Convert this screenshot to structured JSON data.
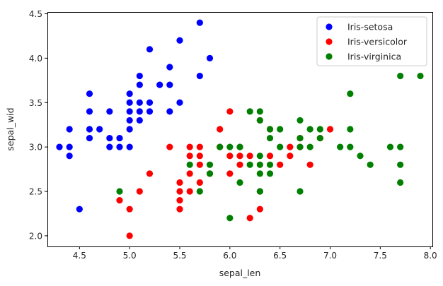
{
  "chart_data": {
    "type": "scatter",
    "xlabel": "sepal_len",
    "ylabel": "sepal_wid",
    "xlim": [
      4.18,
      8.02
    ],
    "ylim": [
      1.88,
      4.52
    ],
    "x_ticks": [
      4.5,
      5.0,
      5.5,
      6.0,
      6.5,
      7.0,
      7.5,
      8.0
    ],
    "y_ticks": [
      2.0,
      2.5,
      3.0,
      3.5,
      4.0,
      4.5
    ],
    "x_tick_labels": [
      "4.5",
      "5.0",
      "5.5",
      "6.0",
      "6.5",
      "7.0",
      "7.5",
      "8.0"
    ],
    "y_tick_labels": [
      "2.0",
      "2.5",
      "3.0",
      "3.5",
      "4.0",
      "4.5"
    ],
    "grid": false,
    "legend_position": "top-right",
    "series": [
      {
        "name": "Iris-setosa",
        "color": "#0000ff",
        "points": [
          [
            4.3,
            3.0
          ],
          [
            4.4,
            3.2
          ],
          [
            4.4,
            3.0
          ],
          [
            4.4,
            2.9
          ],
          [
            4.5,
            2.3
          ],
          [
            4.6,
            3.6
          ],
          [
            4.6,
            3.4
          ],
          [
            4.6,
            3.2
          ],
          [
            4.6,
            3.1
          ],
          [
            4.7,
            3.2
          ],
          [
            4.8,
            3.4
          ],
          [
            4.8,
            3.1
          ],
          [
            4.8,
            3.0
          ],
          [
            4.9,
            3.1
          ],
          [
            4.9,
            3.0
          ],
          [
            5.0,
            3.6
          ],
          [
            5.0,
            3.5
          ],
          [
            5.0,
            3.4
          ],
          [
            5.0,
            3.3
          ],
          [
            5.0,
            3.2
          ],
          [
            5.0,
            3.0
          ],
          [
            5.1,
            3.8
          ],
          [
            5.1,
            3.7
          ],
          [
            5.1,
            3.5
          ],
          [
            5.1,
            3.4
          ],
          [
            5.1,
            3.3
          ],
          [
            5.2,
            4.1
          ],
          [
            5.2,
            3.5
          ],
          [
            5.2,
            3.4
          ],
          [
            5.3,
            3.7
          ],
          [
            5.4,
            3.9
          ],
          [
            5.4,
            3.7
          ],
          [
            5.4,
            3.4
          ],
          [
            5.5,
            4.2
          ],
          [
            5.5,
            3.5
          ],
          [
            5.7,
            4.4
          ],
          [
            5.7,
            3.8
          ],
          [
            5.8,
            4.0
          ]
        ]
      },
      {
        "name": "Iris-versicolor",
        "color": "#ff0000",
        "points": [
          [
            4.9,
            2.4
          ],
          [
            5.0,
            2.3
          ],
          [
            5.0,
            2.0
          ],
          [
            5.1,
            2.5
          ],
          [
            5.2,
            2.7
          ],
          [
            5.4,
            3.0
          ],
          [
            5.5,
            2.6
          ],
          [
            5.5,
            2.5
          ],
          [
            5.5,
            2.4
          ],
          [
            5.5,
            2.3
          ],
          [
            5.6,
            3.0
          ],
          [
            5.6,
            2.9
          ],
          [
            5.6,
            2.7
          ],
          [
            5.6,
            2.5
          ],
          [
            5.7,
            3.0
          ],
          [
            5.7,
            2.9
          ],
          [
            5.7,
            2.8
          ],
          [
            5.7,
            2.6
          ],
          [
            5.8,
            2.7
          ],
          [
            5.9,
            3.2
          ],
          [
            5.9,
            3.0
          ],
          [
            6.0,
            3.4
          ],
          [
            6.0,
            2.9
          ],
          [
            6.0,
            2.7
          ],
          [
            6.1,
            3.0
          ],
          [
            6.1,
            2.9
          ],
          [
            6.1,
            2.8
          ],
          [
            6.2,
            2.9
          ],
          [
            6.2,
            2.2
          ],
          [
            6.3,
            3.3
          ],
          [
            6.3,
            2.5
          ],
          [
            6.3,
            2.3
          ],
          [
            6.4,
            2.9
          ],
          [
            6.4,
            3.2
          ],
          [
            6.5,
            2.8
          ],
          [
            6.6,
            3.0
          ],
          [
            6.6,
            2.9
          ],
          [
            6.7,
            3.1
          ],
          [
            6.7,
            3.0
          ],
          [
            6.8,
            2.8
          ],
          [
            6.9,
            3.1
          ],
          [
            7.0,
            3.2
          ]
        ]
      },
      {
        "name": "Iris-virginica",
        "color": "#008000",
        "points": [
          [
            4.9,
            2.5
          ],
          [
            5.6,
            2.8
          ],
          [
            5.7,
            2.5
          ],
          [
            5.8,
            2.8
          ],
          [
            5.8,
            2.7
          ],
          [
            5.9,
            3.0
          ],
          [
            6.0,
            3.0
          ],
          [
            6.0,
            2.2
          ],
          [
            6.1,
            3.0
          ],
          [
            6.1,
            2.6
          ],
          [
            6.2,
            3.4
          ],
          [
            6.2,
            2.8
          ],
          [
            6.3,
            3.4
          ],
          [
            6.3,
            3.3
          ],
          [
            6.3,
            2.9
          ],
          [
            6.3,
            2.8
          ],
          [
            6.3,
            2.7
          ],
          [
            6.3,
            2.5
          ],
          [
            6.4,
            3.2
          ],
          [
            6.4,
            3.1
          ],
          [
            6.4,
            2.8
          ],
          [
            6.4,
            2.7
          ],
          [
            6.5,
            3.2
          ],
          [
            6.5,
            3.0
          ],
          [
            6.7,
            3.3
          ],
          [
            6.7,
            3.1
          ],
          [
            6.7,
            3.0
          ],
          [
            6.7,
            2.5
          ],
          [
            6.8,
            3.2
          ],
          [
            6.8,
            3.0
          ],
          [
            6.9,
            3.2
          ],
          [
            6.9,
            3.1
          ],
          [
            7.1,
            3.0
          ],
          [
            7.2,
            3.6
          ],
          [
            7.2,
            3.2
          ],
          [
            7.2,
            3.0
          ],
          [
            7.3,
            2.9
          ],
          [
            7.4,
            2.8
          ],
          [
            7.6,
            3.0
          ],
          [
            7.7,
            3.8
          ],
          [
            7.7,
            3.0
          ],
          [
            7.7,
            2.8
          ],
          [
            7.7,
            2.6
          ],
          [
            7.9,
            3.8
          ]
        ]
      }
    ]
  }
}
